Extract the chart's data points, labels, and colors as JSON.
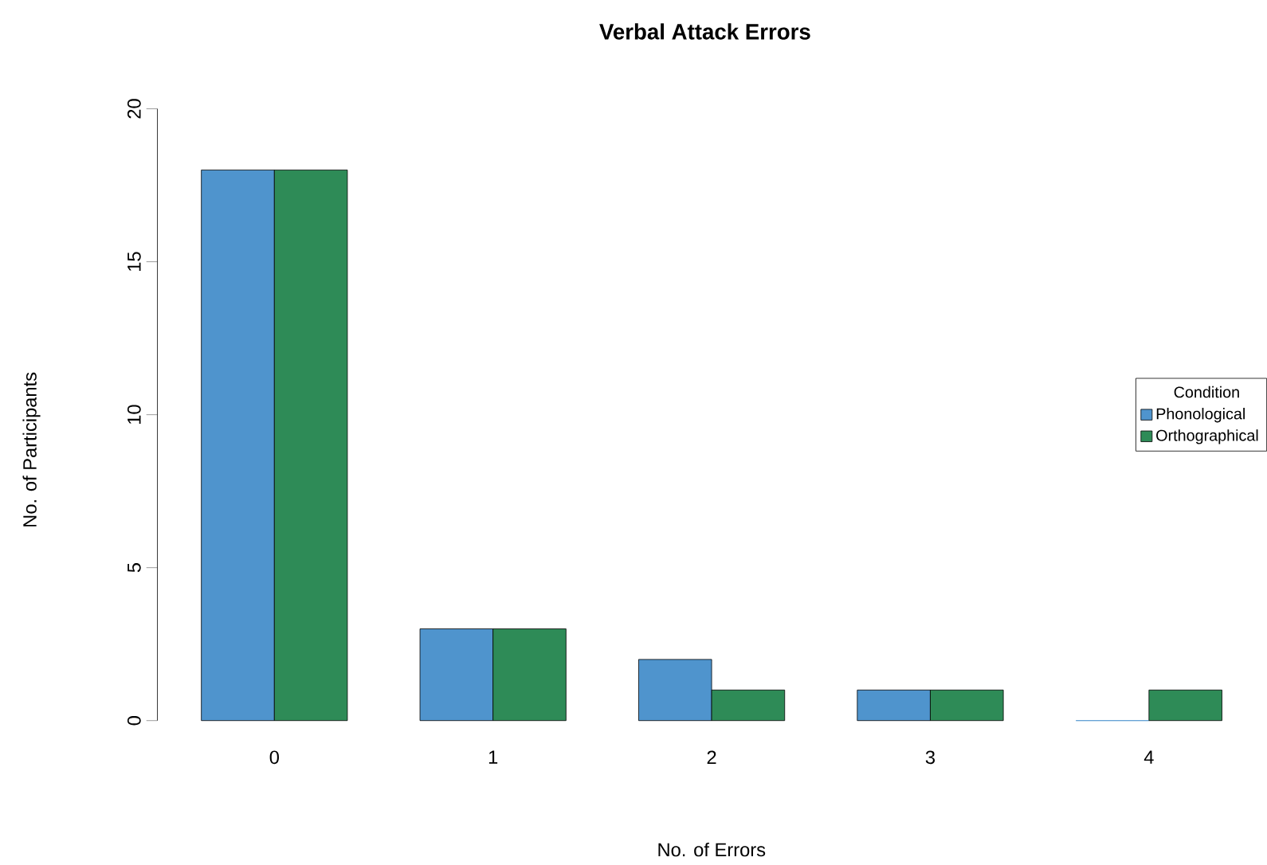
{
  "chart_data": {
    "type": "bar",
    "title": "Verbal Attack Errors",
    "xlabel": "No. of Errors",
    "ylabel": "No. of Participants",
    "legend_title": "Condition",
    "legend": "right",
    "categories": [
      "0",
      "1",
      "2",
      "3",
      "4"
    ],
    "series": [
      {
        "name": "Phonological",
        "color": "#4f94cd",
        "values": [
          18,
          3,
          2,
          1,
          0
        ]
      },
      {
        "name": "Orthographical",
        "color": "#2e8b57",
        "values": [
          18,
          3,
          1,
          1,
          1
        ]
      }
    ],
    "ylim": [
      0,
      20
    ],
    "yticks": [
      0,
      5,
      10,
      15,
      20
    ]
  }
}
